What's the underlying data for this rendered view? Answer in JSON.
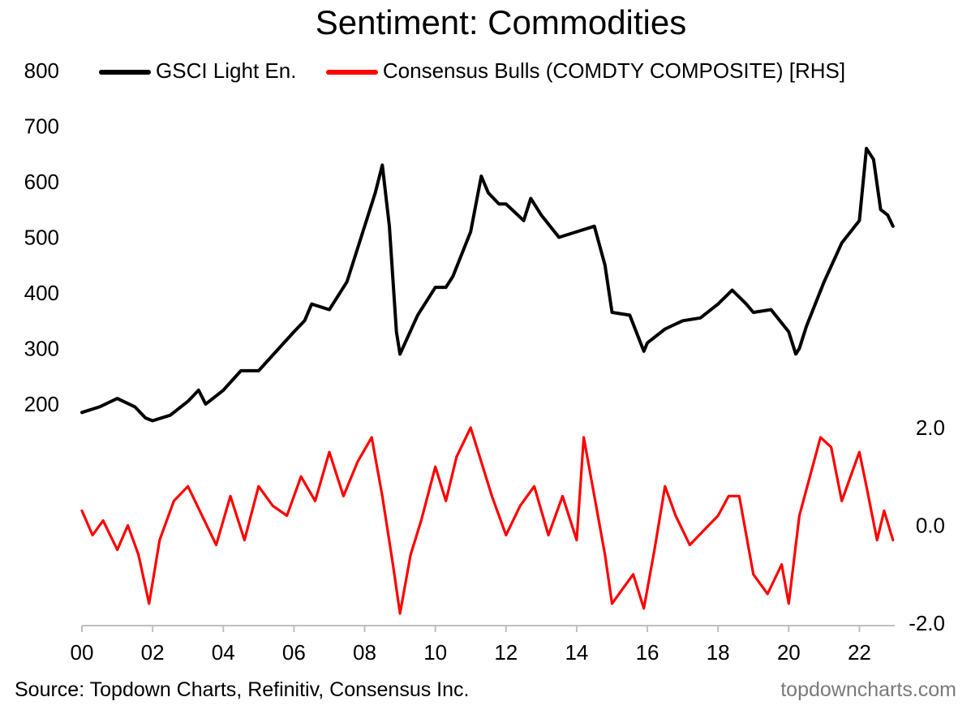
{
  "chart_data": {
    "type": "line",
    "title": "Sentiment: Commodities",
    "x_tick_labels": [
      "00",
      "02",
      "04",
      "06",
      "08",
      "10",
      "12",
      "14",
      "16",
      "18",
      "20",
      "22"
    ],
    "x_tick_years": [
      2000,
      2002,
      2004,
      2006,
      2008,
      2010,
      2012,
      2014,
      2016,
      2018,
      2020,
      2022
    ],
    "x_range": [
      2000,
      2023
    ],
    "left_axis": {
      "ticks": [
        200,
        300,
        400,
        500,
        600,
        700,
        800
      ],
      "ylim": [
        200,
        800
      ]
    },
    "right_axis": {
      "ticks": [
        "2.0",
        "0.0",
        "-2.0"
      ],
      "tick_values": [
        2.0,
        0.0,
        -2.0
      ],
      "ylim": [
        -2.0,
        2.0
      ]
    },
    "legend": [
      "GSCI Light En.",
      "Consensus Bulls (COMDTY COMPOSITE) [RHS]"
    ],
    "series": [
      {
        "name": "GSCI Light En.",
        "axis": "left",
        "color": "#000000",
        "x": [
          2000.0,
          2000.5,
          2001.0,
          2001.5,
          2001.8,
          2002.0,
          2002.5,
          2003.0,
          2003.3,
          2003.5,
          2004.0,
          2004.5,
          2005.0,
          2005.5,
          2006.0,
          2006.3,
          2006.5,
          2007.0,
          2007.5,
          2008.0,
          2008.3,
          2008.5,
          2008.7,
          2008.9,
          2009.0,
          2009.5,
          2010.0,
          2010.3,
          2010.5,
          2011.0,
          2011.3,
          2011.5,
          2011.8,
          2012.0,
          2012.5,
          2012.7,
          2013.0,
          2013.5,
          2014.0,
          2014.5,
          2014.8,
          2015.0,
          2015.5,
          2015.9,
          2016.0,
          2016.5,
          2017.0,
          2017.5,
          2018.0,
          2018.4,
          2018.8,
          2019.0,
          2019.5,
          2020.0,
          2020.2,
          2020.3,
          2020.5,
          2021.0,
          2021.5,
          2022.0,
          2022.2,
          2022.4,
          2022.6,
          2022.8,
          2022.95
        ],
        "values": [
          185,
          195,
          210,
          195,
          175,
          170,
          180,
          205,
          225,
          200,
          225,
          260,
          260,
          295,
          330,
          350,
          380,
          370,
          420,
          520,
          580,
          630,
          520,
          330,
          290,
          360,
          410,
          410,
          430,
          510,
          610,
          580,
          560,
          560,
          530,
          570,
          540,
          500,
          510,
          520,
          450,
          365,
          360,
          295,
          310,
          335,
          350,
          355,
          380,
          405,
          380,
          365,
          370,
          330,
          290,
          300,
          340,
          420,
          490,
          530,
          660,
          640,
          550,
          540,
          520
        ]
      },
      {
        "name": "Consensus Bulls (COMDTY COMPOSITE) [RHS]",
        "axis": "right",
        "color": "#ff0000",
        "x": [
          2000.0,
          2000.3,
          2000.6,
          2001.0,
          2001.3,
          2001.6,
          2001.9,
          2002.2,
          2002.6,
          2003.0,
          2003.4,
          2003.8,
          2004.2,
          2004.6,
          2005.0,
          2005.4,
          2005.8,
          2006.2,
          2006.6,
          2007.0,
          2007.4,
          2007.8,
          2008.2,
          2008.5,
          2008.8,
          2009.0,
          2009.3,
          2009.6,
          2010.0,
          2010.3,
          2010.6,
          2011.0,
          2011.3,
          2011.6,
          2012.0,
          2012.4,
          2012.8,
          2013.2,
          2013.6,
          2014.0,
          2014.2,
          2014.5,
          2014.8,
          2015.0,
          2015.3,
          2015.6,
          2015.9,
          2016.2,
          2016.5,
          2016.8,
          2017.2,
          2017.6,
          2018.0,
          2018.3,
          2018.6,
          2019.0,
          2019.4,
          2019.8,
          2020.0,
          2020.3,
          2020.6,
          2020.9,
          2021.2,
          2021.5,
          2021.8,
          2022.0,
          2022.2,
          2022.5,
          2022.7,
          2022.95
        ],
        "values": [
          0.3,
          -0.2,
          0.1,
          -0.5,
          0.0,
          -0.6,
          -1.6,
          -0.3,
          0.5,
          0.8,
          0.2,
          -0.4,
          0.6,
          -0.3,
          0.8,
          0.4,
          0.2,
          1.0,
          0.5,
          1.5,
          0.6,
          1.3,
          1.8,
          0.6,
          -0.8,
          -1.8,
          -0.6,
          0.1,
          1.2,
          0.5,
          1.4,
          2.0,
          1.3,
          0.6,
          -0.2,
          0.4,
          0.8,
          -0.2,
          0.6,
          -0.3,
          1.8,
          0.6,
          -0.6,
          -1.6,
          -1.3,
          -1.0,
          -1.7,
          -0.5,
          0.8,
          0.2,
          -0.4,
          -0.1,
          0.2,
          0.6,
          0.6,
          -1.0,
          -1.4,
          -0.8,
          -1.6,
          0.2,
          1.0,
          1.8,
          1.6,
          0.5,
          1.1,
          1.5,
          0.8,
          -0.3,
          0.3,
          -0.3
        ]
      }
    ]
  },
  "legend_labels": {
    "gsci": "GSCI Light En.",
    "bulls": "Consensus Bulls (COMDTY COMPOSITE) [RHS]"
  },
  "colors": {
    "gsci": "#000000",
    "bulls": "#ff0000",
    "axis": "#bfbfbf",
    "source": "#000000",
    "brand": "#7a7a7a"
  },
  "footer": {
    "source": "Source: Topdown Charts, Refinitiv, Consensus Inc.",
    "brand": "topdowncharts.com"
  }
}
